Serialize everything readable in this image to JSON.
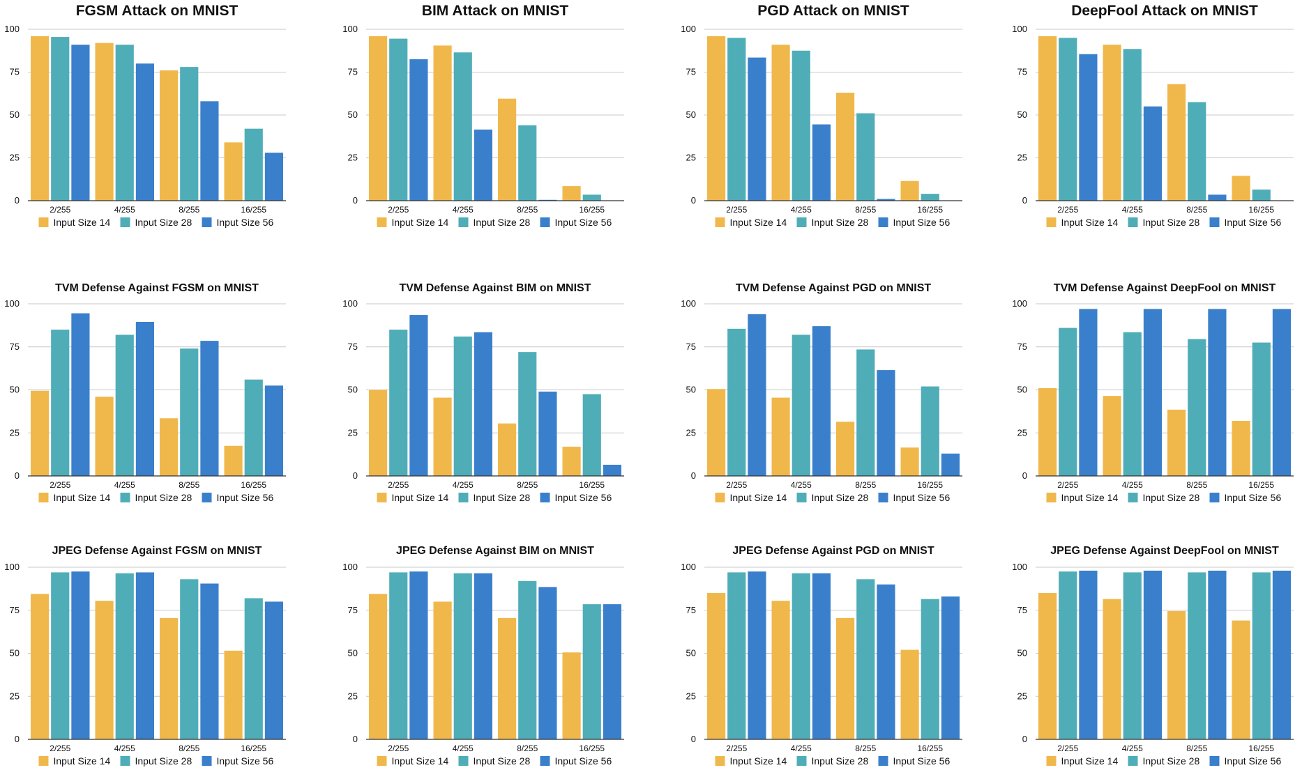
{
  "legend": {
    "size14": "Input Size 14",
    "size28": "Input Size 28",
    "size56": "Input Size 56"
  },
  "colors": {
    "size14": "#f0b84b",
    "size28": "#4fadb8",
    "size56": "#3a7fcb",
    "grid": "#c8c8c8",
    "axis": "#333333"
  },
  "chart_data": [
    {
      "type": "bar",
      "title": "FGSM Attack on MNIST",
      "categories": [
        "2/255",
        "4/255",
        "8/255",
        "16/255"
      ],
      "ylim": [
        0,
        100
      ],
      "yticks": [
        0,
        25,
        50,
        75,
        100
      ],
      "legend": "bottom",
      "series": [
        {
          "name": "Input Size 14",
          "values": [
            96,
            92,
            76,
            34
          ]
        },
        {
          "name": "Input Size 28",
          "values": [
            95.5,
            91,
            78,
            42
          ]
        },
        {
          "name": "Input Size 56",
          "values": [
            91,
            80,
            58,
            28
          ]
        }
      ]
    },
    {
      "type": "bar",
      "title": "BIM Attack on MNIST",
      "categories": [
        "2/255",
        "4/255",
        "8/255",
        "16/255"
      ],
      "ylim": [
        0,
        100
      ],
      "yticks": [
        0,
        25,
        50,
        75,
        100
      ],
      "legend": "bottom",
      "series": [
        {
          "name": "Input Size 14",
          "values": [
            96,
            90.5,
            59.5,
            8.5
          ]
        },
        {
          "name": "Input Size 28",
          "values": [
            94.5,
            86.5,
            44,
            3.5
          ]
        },
        {
          "name": "Input Size 56",
          "values": [
            82.5,
            41.5,
            0.5,
            0
          ]
        }
      ]
    },
    {
      "type": "bar",
      "title": "PGD Attack on MNIST",
      "categories": [
        "2/255",
        "4/255",
        "8/255",
        "16/255"
      ],
      "ylim": [
        0,
        100
      ],
      "yticks": [
        0,
        25,
        50,
        75,
        100
      ],
      "legend": "bottom",
      "series": [
        {
          "name": "Input Size 14",
          "values": [
            96,
            91,
            63,
            11.5
          ]
        },
        {
          "name": "Input Size 28",
          "values": [
            95,
            87.5,
            51,
            4
          ]
        },
        {
          "name": "Input Size 56",
          "values": [
            83.5,
            44.5,
            1,
            0
          ]
        }
      ]
    },
    {
      "type": "bar",
      "title": "DeepFool Attack on MNIST",
      "categories": [
        "2/255",
        "4/255",
        "8/255",
        "16/255"
      ],
      "ylim": [
        0,
        100
      ],
      "yticks": [
        0,
        25,
        50,
        75,
        100
      ],
      "legend": "bottom",
      "series": [
        {
          "name": "Input Size 14",
          "values": [
            96,
            91,
            68,
            14.5
          ]
        },
        {
          "name": "Input Size 28",
          "values": [
            95,
            88.5,
            57.5,
            6.5
          ]
        },
        {
          "name": "Input Size 56",
          "values": [
            85.5,
            55,
            3.5,
            0
          ]
        }
      ]
    },
    {
      "type": "bar",
      "title": "TVM Defense Against FGSM on MNIST",
      "categories": [
        "2/255",
        "4/255",
        "8/255",
        "16/255"
      ],
      "ylim": [
        0,
        100
      ],
      "yticks": [
        0,
        25,
        50,
        75,
        100
      ],
      "legend": "bottom",
      "series": [
        {
          "name": "Input Size 14",
          "values": [
            49.5,
            46,
            33.5,
            17.5
          ]
        },
        {
          "name": "Input Size 28",
          "values": [
            85,
            82,
            74,
            56
          ]
        },
        {
          "name": "Input Size 56",
          "values": [
            94.5,
            89.5,
            78.5,
            52.5
          ]
        }
      ]
    },
    {
      "type": "bar",
      "title": "TVM Defense Against BIM on MNIST",
      "categories": [
        "2/255",
        "4/255",
        "8/255",
        "16/255"
      ],
      "ylim": [
        0,
        100
      ],
      "yticks": [
        0,
        25,
        50,
        75,
        100
      ],
      "legend": "bottom",
      "series": [
        {
          "name": "Input Size 14",
          "values": [
            50,
            45.5,
            30.5,
            17
          ]
        },
        {
          "name": "Input Size 28",
          "values": [
            85,
            81,
            72,
            47.5
          ]
        },
        {
          "name": "Input Size 56",
          "values": [
            93.5,
            83.5,
            49,
            6.5
          ]
        }
      ]
    },
    {
      "type": "bar",
      "title": "TVM Defense Against PGD on MNIST",
      "categories": [
        "2/255",
        "4/255",
        "8/255",
        "16/255"
      ],
      "ylim": [
        0,
        100
      ],
      "yticks": [
        0,
        25,
        50,
        75,
        100
      ],
      "legend": "bottom",
      "series": [
        {
          "name": "Input Size 14",
          "values": [
            50.5,
            45.5,
            31.5,
            16.5
          ]
        },
        {
          "name": "Input Size 28",
          "values": [
            85.5,
            82,
            73.5,
            52
          ]
        },
        {
          "name": "Input Size 56",
          "values": [
            94,
            87,
            61.5,
            13
          ]
        }
      ]
    },
    {
      "type": "bar",
      "title": "TVM Defense Against DeepFool on MNIST",
      "categories": [
        "2/255",
        "4/255",
        "8/255",
        "16/255"
      ],
      "ylim": [
        0,
        100
      ],
      "yticks": [
        0,
        25,
        50,
        75,
        100
      ],
      "legend": "bottom",
      "series": [
        {
          "name": "Input Size 14",
          "values": [
            51,
            46.5,
            38.5,
            32
          ]
        },
        {
          "name": "Input Size 28",
          "values": [
            86,
            83.5,
            79.5,
            77.5
          ]
        },
        {
          "name": "Input Size 56",
          "values": [
            97,
            97,
            97,
            97
          ]
        }
      ]
    },
    {
      "type": "bar",
      "title": "JPEG Defense Against FGSM on MNIST",
      "categories": [
        "2/255",
        "4/255",
        "8/255",
        "16/255"
      ],
      "ylim": [
        0,
        100
      ],
      "yticks": [
        0,
        25,
        50,
        75,
        100
      ],
      "legend": "bottom",
      "series": [
        {
          "name": "Input Size 14",
          "values": [
            84.5,
            80.5,
            70.5,
            51.5
          ]
        },
        {
          "name": "Input Size 28",
          "values": [
            97,
            96.5,
            93,
            82
          ]
        },
        {
          "name": "Input Size 56",
          "values": [
            97.5,
            97,
            90.5,
            80
          ]
        }
      ]
    },
    {
      "type": "bar",
      "title": "JPEG Defense Against BIM on MNIST",
      "categories": [
        "2/255",
        "4/255",
        "8/255",
        "16/255"
      ],
      "ylim": [
        0,
        100
      ],
      "yticks": [
        0,
        25,
        50,
        75,
        100
      ],
      "legend": "bottom",
      "series": [
        {
          "name": "Input Size 14",
          "values": [
            84.5,
            80,
            70.5,
            50.5
          ]
        },
        {
          "name": "Input Size 28",
          "values": [
            97,
            96.5,
            92,
            78.5
          ]
        },
        {
          "name": "Input Size 56",
          "values": [
            97.5,
            96.5,
            88.5,
            78.5
          ]
        }
      ]
    },
    {
      "type": "bar",
      "title": "JPEG Defense Against PGD on MNIST",
      "categories": [
        "2/255",
        "4/255",
        "8/255",
        "16/255"
      ],
      "ylim": [
        0,
        100
      ],
      "yticks": [
        0,
        25,
        50,
        75,
        100
      ],
      "legend": "bottom",
      "series": [
        {
          "name": "Input Size 14",
          "values": [
            85,
            80.5,
            70.5,
            52
          ]
        },
        {
          "name": "Input Size 28",
          "values": [
            97,
            96.5,
            93,
            81.5
          ]
        },
        {
          "name": "Input Size 56",
          "values": [
            97.5,
            96.5,
            90,
            83
          ]
        }
      ]
    },
    {
      "type": "bar",
      "title": "JPEG Defense Against DeepFool on MNIST",
      "categories": [
        "2/255",
        "4/255",
        "8/255",
        "16/255"
      ],
      "ylim": [
        0,
        100
      ],
      "yticks": [
        0,
        25,
        50,
        75,
        100
      ],
      "legend": "bottom",
      "series": [
        {
          "name": "Input Size 14",
          "values": [
            85,
            81.5,
            74.5,
            69
          ]
        },
        {
          "name": "Input Size 28",
          "values": [
            97.5,
            97,
            97,
            97
          ]
        },
        {
          "name": "Input Size 56",
          "values": [
            98,
            98,
            98,
            98
          ]
        }
      ]
    }
  ]
}
